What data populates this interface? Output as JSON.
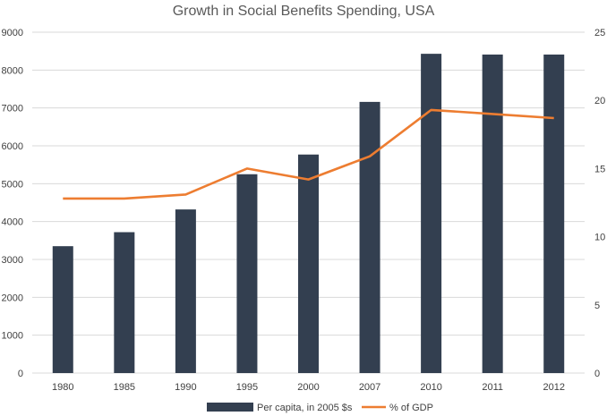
{
  "chart_data": {
    "type": "bar",
    "title": "Growth in Social Benefits Spending, USA",
    "categories": [
      "1980",
      "1985",
      "1990",
      "1995",
      "2000",
      "2007",
      "2010",
      "2011",
      "2012"
    ],
    "series": [
      {
        "name": "Per capita, in 2005 $s",
        "type": "bar",
        "axis": "left",
        "color": "#333f50",
        "values": [
          3350,
          3720,
          4320,
          5250,
          5770,
          7160,
          8430,
          8410,
          8410
        ]
      },
      {
        "name": "% of GDP",
        "type": "line",
        "axis": "right",
        "color": "#ed7d31",
        "values": [
          12.8,
          12.8,
          13.1,
          15.0,
          14.2,
          15.9,
          19.3,
          19.0,
          18.7
        ]
      }
    ],
    "y_left": {
      "min": 0,
      "max": 9000,
      "ticks": [
        "0",
        "1000",
        "2000",
        "3000",
        "4000",
        "5000",
        "6000",
        "7000",
        "8000",
        "9000"
      ]
    },
    "y_right": {
      "min": 0,
      "max": 25,
      "ticks": [
        "0",
        "5",
        "10",
        "15",
        "20",
        "25"
      ]
    },
    "grid": true,
    "legend_position": "bottom"
  }
}
